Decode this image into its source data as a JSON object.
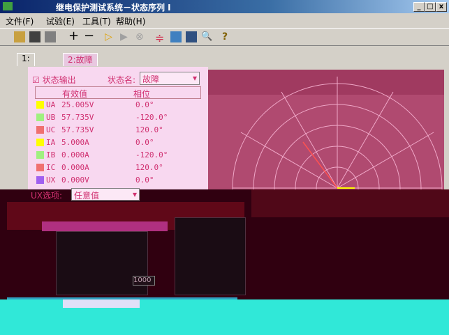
{
  "window": {
    "title": "继电保护测试系统－状态序列 I",
    "buttons": [
      "_",
      "□",
      "x"
    ]
  },
  "menu": [
    "文件(F)",
    "试验(E)",
    "工具(T)",
    "帮助(H)"
  ],
  "tabs": [
    "1:",
    "2:故障"
  ],
  "panel": {
    "output_checkbox": "状态输出",
    "state_name_label": "状态名:",
    "state_name": "故障",
    "table": {
      "headers": [
        "有效值",
        "相位"
      ],
      "rows": [
        {
          "name": "UA",
          "value": "25.005V",
          "phase": "0.0°",
          "color": "#ffff00"
        },
        {
          "name": "UB",
          "value": "57.735V",
          "phase": "-120.0°",
          "color": "#a0f080"
        },
        {
          "name": "UC",
          "value": "57.735V",
          "phase": "120.0°",
          "color": "#f07070"
        },
        {
          "name": "IA",
          "value": "5.000A",
          "phase": "0.0°",
          "color": "#ffff00"
        },
        {
          "name": "IB",
          "value": "0.000A",
          "phase": "-120.0°",
          "color": "#a0f080"
        },
        {
          "name": "IC",
          "value": "0.000A",
          "phase": "120.0°",
          "color": "#f07070"
        },
        {
          "name": "UX",
          "value": "0.000V",
          "phase": "0.0°",
          "color": "#a060f0"
        }
      ]
    },
    "ux_label": "UX选项:",
    "ux_value": "任意值"
  },
  "lower": {
    "field": "1000"
  }
}
